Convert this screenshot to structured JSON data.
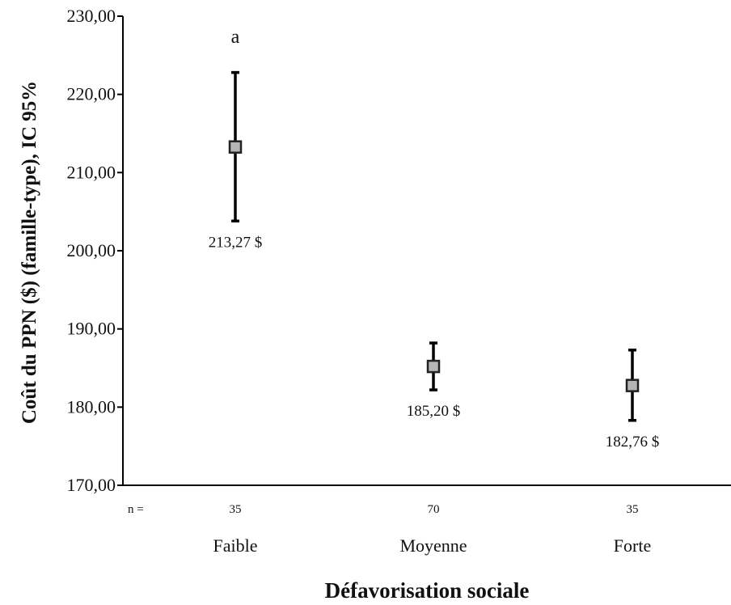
{
  "chart_data": {
    "type": "scatter",
    "title": "",
    "ylabel": "Coût du PPN ($) (famille-type), IC 95%",
    "xlabel": "Défavorisation sociale",
    "ylim": [
      170,
      230
    ],
    "y_ticks": [
      "170,00",
      "180,00",
      "190,00",
      "200,00",
      "210,00",
      "220,00",
      "230,00"
    ],
    "y_tick_values": [
      170,
      180,
      190,
      200,
      210,
      220,
      230
    ],
    "n_prefix": "n =",
    "grid": false,
    "categories": [
      "Faible",
      "Moyenne",
      "Forte"
    ],
    "n": [
      "35",
      "70",
      "35"
    ],
    "values": [
      213.27,
      185.2,
      182.76
    ],
    "ci_lower": [
      203.8,
      182.2,
      178.3
    ],
    "ci_upper": [
      222.8,
      188.2,
      187.3
    ],
    "value_labels": [
      "213,27 $",
      "185,20 $",
      "182,76 $"
    ],
    "annotations": [
      {
        "category_index": 0,
        "text": "a"
      }
    ]
  }
}
